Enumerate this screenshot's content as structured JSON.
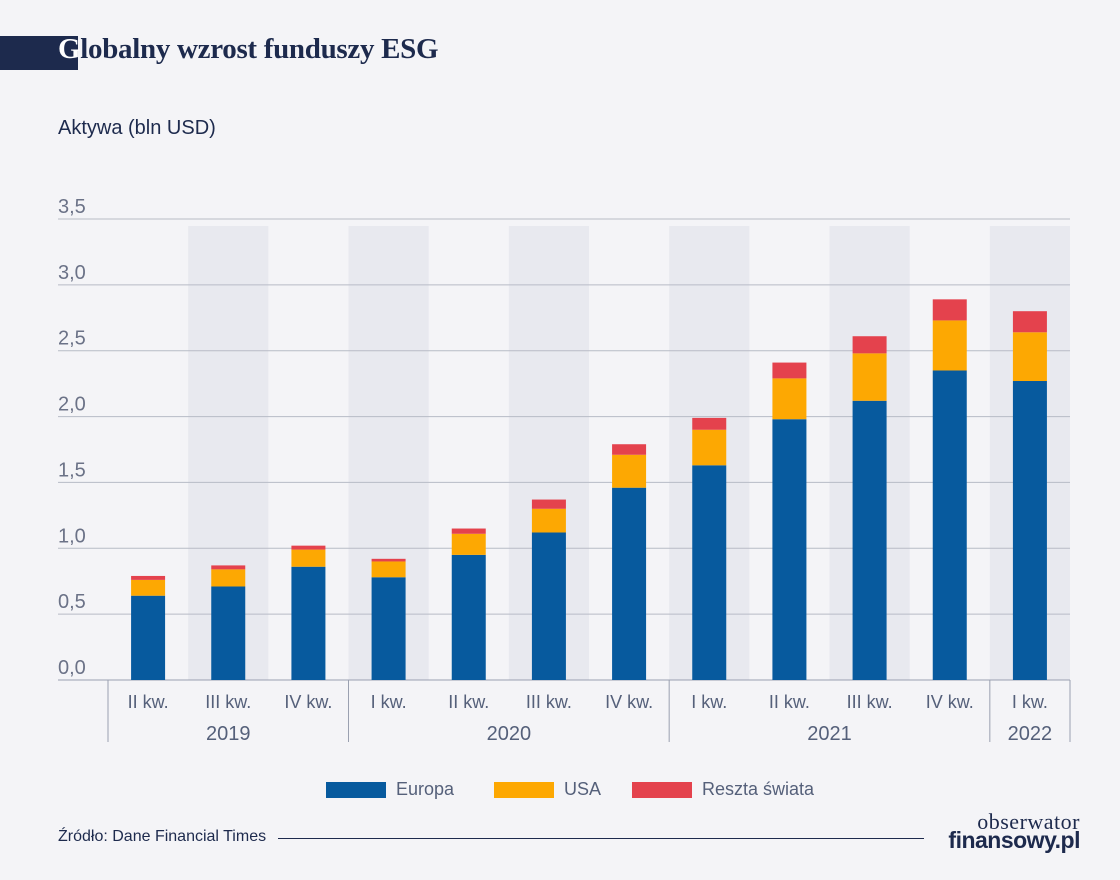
{
  "header": {
    "title_first": "G",
    "title_rest": "lobalny wzrost funduszy ESG",
    "subtitle": "Aktywa (bln USD)"
  },
  "chart_data": {
    "type": "bar",
    "stacked": true,
    "title": "Globalny wzrost funduszy ESG",
    "ylabel": "Aktywa (bln USD)",
    "ylim": [
      0,
      3.5
    ],
    "yticks": [
      "0,0",
      "0,5",
      "1,0",
      "1,5",
      "2,0",
      "2,5",
      "3,0",
      "3,5"
    ],
    "grid": true,
    "legend_position": "bottom-center",
    "categories": [
      "II kw.",
      "III kw.",
      "IV kw.",
      "I kw.",
      "II kw.",
      "III kw.",
      "IV kw.",
      "I kw.",
      "II kw.",
      "III kw.",
      "IV kw.",
      "I kw."
    ],
    "groups": [
      {
        "label": "2019",
        "count": 3
      },
      {
        "label": "2020",
        "count": 4
      },
      {
        "label": "2021",
        "count": 4
      },
      {
        "label": "2022",
        "count": 1
      }
    ],
    "series": [
      {
        "name": "Europa",
        "color": "#075a9e",
        "values": [
          0.64,
          0.71,
          0.86,
          0.78,
          0.95,
          1.12,
          1.46,
          1.63,
          1.98,
          2.12,
          2.35,
          2.27
        ]
      },
      {
        "name": "USA",
        "color": "#fda802",
        "values": [
          0.12,
          0.13,
          0.13,
          0.12,
          0.16,
          0.18,
          0.25,
          0.27,
          0.31,
          0.36,
          0.38,
          0.37
        ]
      },
      {
        "name": "Reszta świata",
        "color": "#e4424d",
        "values": [
          0.03,
          0.03,
          0.03,
          0.02,
          0.04,
          0.07,
          0.08,
          0.09,
          0.12,
          0.13,
          0.16,
          0.16
        ]
      }
    ]
  },
  "footer": {
    "source": "Źródło: Dane Financial Times",
    "logo_line1": "obserwator",
    "logo_line2": "finansowy.pl"
  }
}
